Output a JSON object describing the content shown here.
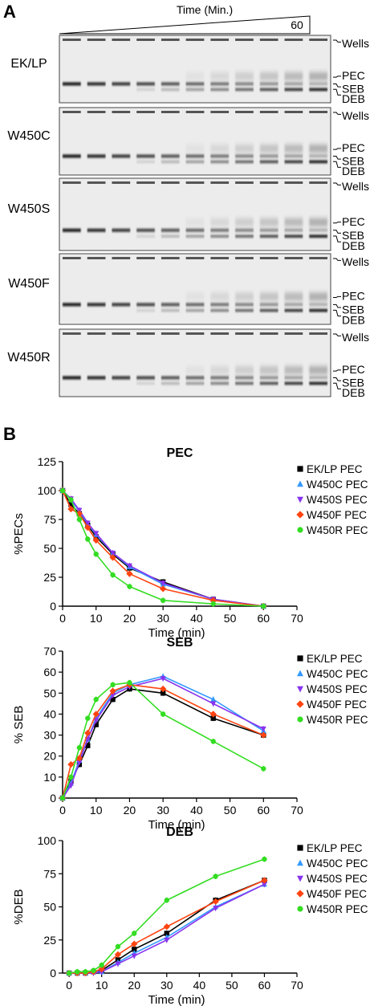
{
  "panel_a": {
    "letter": "A",
    "time_label": "Time (Min.)",
    "end_label": "60",
    "lanes": 11,
    "gels": [
      {
        "name": "EK/LP",
        "band_labels": [
          "Wells",
          "PEC",
          "SEB",
          "DEB"
        ]
      },
      {
        "name": "W450C",
        "band_labels": [
          "Wells",
          "PEC",
          "SEB",
          "DEB"
        ]
      },
      {
        "name": "W450S",
        "band_labels": [
          "Wells",
          "PEC",
          "SEB",
          "DEB"
        ]
      },
      {
        "name": "W450F",
        "band_labels": [
          "Wells",
          "PEC",
          "SEB",
          "DEB"
        ]
      },
      {
        "name": "W450R",
        "band_labels": [
          "Wells",
          "PEC",
          "SEB",
          "DEB"
        ]
      }
    ]
  },
  "panel_b": {
    "letter": "B"
  },
  "colors": {
    "EK/LP": "#000000",
    "W450C": "#3399ff",
    "W450S": "#8833ee",
    "W450F": "#ff4411",
    "W450R": "#33dd22"
  },
  "chart_data": [
    {
      "type": "line",
      "title": "PEC",
      "xlabel": "Time (min)",
      "ylabel": "%PECs",
      "xlim": [
        0,
        70
      ],
      "ylim": [
        0,
        125
      ],
      "xticks": [
        0,
        10,
        20,
        30,
        40,
        50,
        60,
        70
      ],
      "yticks": [
        0,
        25,
        50,
        75,
        100,
        125
      ],
      "legend_position": "right",
      "x": [
        0,
        2.5,
        5,
        7.5,
        10,
        15,
        20,
        30,
        45,
        60
      ],
      "series": [
        {
          "name": "EK/LP PEC",
          "marker": "square",
          "values": [
            100,
            88,
            80,
            70,
            60,
            45,
            33,
            21,
            6,
            0
          ]
        },
        {
          "name": "W450C PEC",
          "marker": "triangle-up",
          "values": [
            100,
            92,
            82,
            71,
            62,
            46,
            34,
            19,
            6,
            0
          ]
        },
        {
          "name": "W450S PEC",
          "marker": "triangle-down",
          "values": [
            100,
            93,
            83,
            72,
            63,
            46,
            35,
            20,
            6,
            0
          ]
        },
        {
          "name": "W450F PEC",
          "marker": "diamond",
          "values": [
            100,
            84,
            80,
            68,
            57,
            42,
            28,
            15,
            5,
            0
          ]
        },
        {
          "name": "W450R PEC",
          "marker": "circle",
          "values": [
            100,
            92,
            75,
            58,
            45,
            27,
            17,
            5,
            2,
            0
          ]
        }
      ]
    },
    {
      "type": "line",
      "title": "SEB",
      "xlabel": "Time (min)",
      "ylabel": "% SEB",
      "xlim": [
        0,
        70
      ],
      "ylim": [
        0,
        70
      ],
      "xticks": [
        0,
        10,
        20,
        30,
        40,
        50,
        60,
        70
      ],
      "yticks": [
        0,
        10,
        20,
        30,
        40,
        50,
        60,
        70
      ],
      "legend_position": "right",
      "x": [
        0,
        2.5,
        5,
        7.5,
        10,
        15,
        20,
        30,
        45,
        60
      ],
      "series": [
        {
          "name": "EK/LP PEC",
          "marker": "square",
          "values": [
            0,
            8,
            16,
            25,
            35,
            47,
            52,
            50,
            38,
            30
          ]
        },
        {
          "name": "W450C PEC",
          "marker": "triangle-up",
          "values": [
            0,
            7,
            18,
            28,
            38,
            50,
            54,
            58,
            47,
            32
          ]
        },
        {
          "name": "W450S PEC",
          "marker": "triangle-down",
          "values": [
            0,
            6,
            17,
            28,
            37,
            49,
            53,
            57,
            45,
            33
          ]
        },
        {
          "name": "W450F PEC",
          "marker": "diamond",
          "values": [
            0,
            16,
            19,
            31,
            40,
            51,
            54,
            52,
            40,
            30
          ]
        },
        {
          "name": "W450R PEC",
          "marker": "circle",
          "values": [
            0,
            10,
            24,
            38,
            47,
            54,
            55,
            40,
            27,
            14
          ]
        }
      ]
    },
    {
      "type": "line",
      "title": "DEB",
      "xlabel": "Time (min)",
      "ylabel": "%DEB",
      "xlim": [
        -2,
        70
      ],
      "ylim": [
        0,
        100
      ],
      "xticks": [
        0,
        10,
        20,
        30,
        40,
        50,
        60,
        70
      ],
      "yticks": [
        0,
        25,
        50,
        75,
        100
      ],
      "legend_position": "right",
      "x": [
        0,
        2.5,
        5,
        7.5,
        10,
        15,
        20,
        30,
        45,
        60
      ],
      "series": [
        {
          "name": "EK/LP PEC",
          "marker": "square",
          "values": [
            0,
            0,
            0,
            1,
            2,
            10,
            18,
            30,
            55,
            70
          ]
        },
        {
          "name": "W450C PEC",
          "marker": "triangle-up",
          "values": [
            0,
            0,
            0,
            1,
            1,
            8,
            15,
            27,
            50,
            67
          ]
        },
        {
          "name": "W450S PEC",
          "marker": "triangle-down",
          "values": [
            0,
            0,
            0,
            0,
            1,
            7,
            13,
            25,
            49,
            67
          ]
        },
        {
          "name": "W450F PEC",
          "marker": "diamond",
          "values": [
            0,
            0,
            0,
            1,
            3,
            14,
            22,
            35,
            54,
            70
          ]
        },
        {
          "name": "W450R PEC",
          "marker": "circle",
          "values": [
            0,
            1,
            1,
            2,
            6,
            20,
            30,
            55,
            73,
            86
          ]
        }
      ]
    }
  ]
}
